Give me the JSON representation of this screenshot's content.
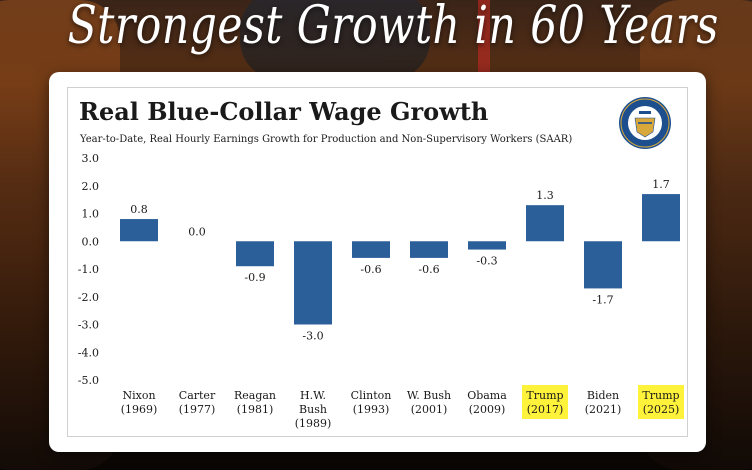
{
  "headline": "Strongest Growth in 60 Years",
  "seal_text": "THE DEPARTMENT OF THE TREASURY 1789",
  "colors": {
    "bar": "#2b5f99",
    "highlight": "#fff23b",
    "text": "#1a1a1a",
    "seal_blue": "#1d4f8f",
    "seal_gold": "#d8a83a"
  },
  "chart_data": {
    "type": "bar",
    "title": "Real Blue-Collar Wage Growth",
    "subtitle": "Year-to-Date, Real Hourly Earnings Growth for Production and Non-Supervisory Workers (SAAR)",
    "xlabel": "",
    "ylabel": "",
    "ylim": [
      -5.0,
      3.0
    ],
    "yticks": [
      "3.0",
      "2.0",
      "1.0",
      "0.0",
      "-1.0",
      "-2.0",
      "-3.0",
      "-4.0",
      "-5.0"
    ],
    "ytick_values": [
      3,
      2,
      1,
      0,
      -1,
      -2,
      -3,
      -4,
      -5
    ],
    "grid": false,
    "categories": [
      [
        "Nixon",
        "(1969)"
      ],
      [
        "Carter",
        "(1977)"
      ],
      [
        "Reagan",
        "(1981)"
      ],
      [
        "H.W.",
        "Bush",
        "(1989)"
      ],
      [
        "Clinton",
        "(1993)"
      ],
      [
        "W. Bush",
        "(2001)"
      ],
      [
        "Obama",
        "(2009)"
      ],
      [
        "Trump",
        "(2017)"
      ],
      [
        "Biden",
        "(2021)"
      ],
      [
        "Trump",
        "(2025)"
      ]
    ],
    "values": [
      0.8,
      0.0,
      -0.9,
      -3.0,
      -0.6,
      -0.6,
      -0.3,
      1.3,
      -1.7,
      1.7
    ],
    "value_labels": [
      "0.8",
      "0.0",
      "-0.9",
      "-3.0",
      "-0.6",
      "-0.6",
      "-0.3",
      "1.3",
      "-1.7",
      "1.7"
    ],
    "highlighted": [
      false,
      false,
      false,
      false,
      false,
      false,
      false,
      true,
      false,
      true
    ]
  }
}
